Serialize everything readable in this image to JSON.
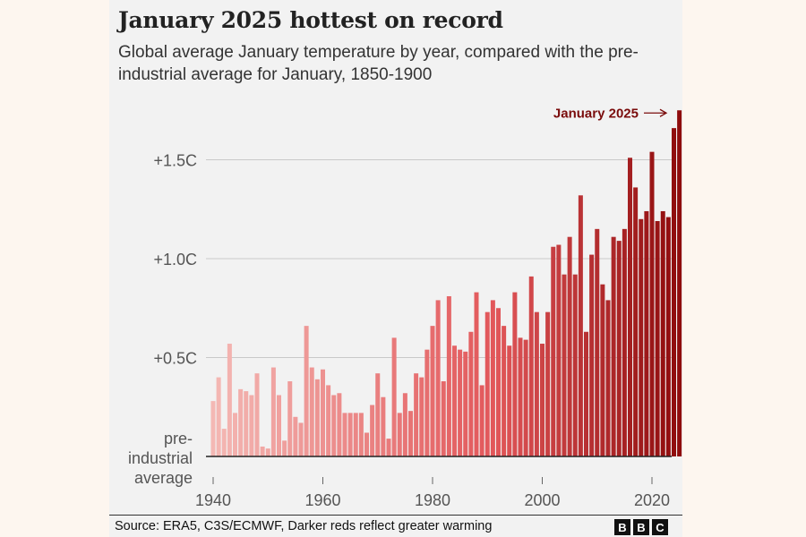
{
  "chart_data": {
    "type": "bar",
    "title": "January 2025 hottest on record",
    "subtitle": "Global average January temperature by year, compared with the pre-industrial average for January, 1850-1900",
    "years": [
      1940,
      1941,
      1942,
      1943,
      1944,
      1945,
      1946,
      1947,
      1948,
      1949,
      1950,
      1951,
      1952,
      1953,
      1954,
      1955,
      1956,
      1957,
      1958,
      1959,
      1960,
      1961,
      1962,
      1963,
      1964,
      1965,
      1966,
      1967,
      1968,
      1969,
      1970,
      1971,
      1972,
      1973,
      1974,
      1975,
      1976,
      1977,
      1978,
      1979,
      1980,
      1981,
      1982,
      1983,
      1984,
      1985,
      1986,
      1987,
      1988,
      1989,
      1990,
      1991,
      1992,
      1993,
      1994,
      1995,
      1996,
      1997,
      1998,
      1999,
      2000,
      2001,
      2002,
      2003,
      2004,
      2005,
      2006,
      2007,
      2008,
      2009,
      2010,
      2011,
      2012,
      2013,
      2014,
      2015,
      2016,
      2017,
      2018,
      2019,
      2020,
      2021,
      2022,
      2023,
      2024,
      2025
    ],
    "values": [
      0.28,
      0.4,
      0.14,
      0.57,
      0.22,
      0.34,
      0.33,
      0.31,
      0.42,
      0.05,
      0.04,
      0.45,
      0.31,
      0.08,
      0.38,
      0.2,
      0.17,
      0.66,
      0.45,
      0.39,
      0.44,
      0.36,
      0.31,
      0.32,
      0.22,
      0.22,
      0.22,
      0.22,
      0.12,
      0.26,
      0.42,
      0.3,
      0.09,
      0.6,
      0.22,
      0.32,
      0.23,
      0.42,
      0.4,
      0.54,
      0.66,
      0.79,
      0.38,
      0.81,
      0.56,
      0.54,
      0.53,
      0.63,
      0.83,
      0.36,
      0.73,
      0.79,
      0.75,
      0.66,
      0.56,
      0.83,
      0.6,
      0.59,
      0.91,
      0.73,
      0.57,
      0.73,
      1.06,
      1.07,
      0.92,
      1.11,
      0.92,
      1.32,
      0.63,
      1.02,
      1.15,
      0.87,
      0.79,
      1.11,
      1.09,
      1.15,
      1.51,
      1.36,
      1.2,
      1.24,
      1.54,
      1.19,
      1.24,
      1.21,
      1.66,
      1.75
    ],
    "y_ticks": [
      {
        "value": 1.5,
        "label": "+1.5C"
      },
      {
        "value": 1.0,
        "label": "+1.0C"
      },
      {
        "value": 0.5,
        "label": "+0.5C"
      }
    ],
    "baseline_label": [
      "pre-",
      "industrial",
      "average"
    ],
    "x_ticks": [
      {
        "value": 1940,
        "label": "1940"
      },
      {
        "value": 1960,
        "label": "1960"
      },
      {
        "value": 1980,
        "label": "1980"
      },
      {
        "value": 2000,
        "label": "2000"
      },
      {
        "value": 2020,
        "label": "2020"
      }
    ],
    "annotation": {
      "label": "January 2025",
      "year": 2025
    },
    "ylim": [
      0,
      1.75
    ],
    "colors": {
      "light": "#f4b8b4",
      "mid": "#e2575a",
      "dark": "#8e0b0c",
      "annotation": "#7a0c0c",
      "grid": "#c9c9c9",
      "axis_text": "#555555"
    }
  },
  "footer": {
    "source": "Source: ERA5, C3S/ECMWF, Darker reds reflect greater warming",
    "logo_letters": [
      "B",
      "B",
      "C"
    ]
  }
}
